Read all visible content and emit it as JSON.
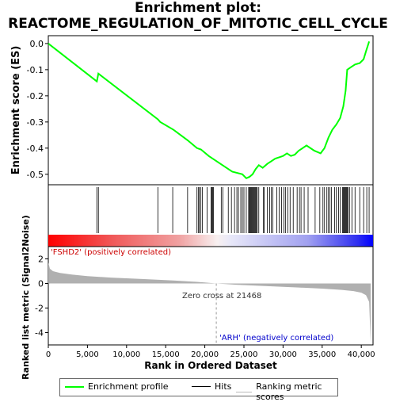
{
  "title": {
    "line1": "Enrichment plot:",
    "line2": "REACTOME_REGULATION_OF_MITOTIC_CELL_CYCLE"
  },
  "colors": {
    "es_line": "#00ff00",
    "hit": "#000000",
    "metric_fill": "#b0b0b0",
    "pos_end": "#ff0000",
    "neg_end": "#0000ff",
    "zero_line": "#999999"
  },
  "chart_data": [
    {
      "type": "line",
      "name": "enrichment-score",
      "ylabel": "Enrichment score (ES)",
      "xlim": [
        0,
        41500
      ],
      "ylim": [
        -0.54,
        0.03
      ],
      "yticks": [
        0.0,
        -0.1,
        -0.2,
        -0.3,
        -0.4,
        -0.5
      ],
      "ytick_labels": [
        "0.0",
        "-0.1",
        "-0.2",
        "-0.3",
        "-0.4",
        "-0.5"
      ],
      "grid": false,
      "points": [
        [
          0,
          0.0
        ],
        [
          6200,
          -0.145
        ],
        [
          6400,
          -0.115
        ],
        [
          14000,
          -0.29
        ],
        [
          14300,
          -0.3
        ],
        [
          16000,
          -0.33
        ],
        [
          17800,
          -0.37
        ],
        [
          19000,
          -0.4
        ],
        [
          19500,
          -0.405
        ],
        [
          20500,
          -0.43
        ],
        [
          22000,
          -0.46
        ],
        [
          23500,
          -0.49
        ],
        [
          24800,
          -0.5
        ],
        [
          25300,
          -0.515
        ],
        [
          25700,
          -0.51
        ],
        [
          26100,
          -0.5
        ],
        [
          26500,
          -0.48
        ],
        [
          26900,
          -0.465
        ],
        [
          27400,
          -0.475
        ],
        [
          28000,
          -0.46
        ],
        [
          28500,
          -0.45
        ],
        [
          29000,
          -0.44
        ],
        [
          29500,
          -0.435
        ],
        [
          30000,
          -0.43
        ],
        [
          30500,
          -0.42
        ],
        [
          31000,
          -0.43
        ],
        [
          31500,
          -0.425
        ],
        [
          32000,
          -0.41
        ],
        [
          32500,
          -0.4
        ],
        [
          33000,
          -0.39
        ],
        [
          34000,
          -0.41
        ],
        [
          34800,
          -0.42
        ],
        [
          35300,
          -0.4
        ],
        [
          35800,
          -0.36
        ],
        [
          36300,
          -0.33
        ],
        [
          36800,
          -0.31
        ],
        [
          37300,
          -0.285
        ],
        [
          37700,
          -0.24
        ],
        [
          38000,
          -0.18
        ],
        [
          38200,
          -0.1
        ],
        [
          38700,
          -0.09
        ],
        [
          39200,
          -0.08
        ],
        [
          39800,
          -0.075
        ],
        [
          40300,
          -0.06
        ],
        [
          40600,
          -0.03
        ],
        [
          41000,
          0.008
        ]
      ]
    },
    {
      "type": "hits",
      "name": "hits",
      "positions": [
        6200,
        6400,
        14000,
        15900,
        17800,
        19000,
        19200,
        19300,
        19500,
        19700,
        20300,
        20800,
        20900,
        21000,
        21100,
        22100,
        22300,
        23000,
        23400,
        23800,
        24100,
        24300,
        24600,
        24800,
        25000,
        25300,
        25600,
        25700,
        25800,
        25900,
        26000,
        26100,
        26200,
        26300,
        26400,
        26500,
        26600,
        26700,
        26900,
        27500,
        27600,
        28000,
        28300,
        28500,
        28700,
        29200,
        29500,
        29800,
        30100,
        30300,
        30600,
        30900,
        31300,
        31800,
        32100,
        32300,
        32700,
        33200,
        34100,
        34700,
        35100,
        35300,
        35600,
        35800,
        36000,
        36200,
        36600,
        36800,
        37100,
        37300,
        37600,
        37700,
        37800,
        37900,
        38000,
        38100,
        38200,
        38300,
        38500,
        38800,
        39200,
        39800,
        40300,
        40700,
        41000
      ]
    },
    {
      "type": "area",
      "name": "ranked-metric",
      "xlabel": "Rank in Ordered Dataset",
      "ylabel": "Ranked list metric (Signal2Noise)",
      "xlim": [
        0,
        41500
      ],
      "ylim": [
        -5,
        3
      ],
      "yticks": [
        2,
        0,
        -2,
        -4
      ],
      "ytick_labels": [
        "2",
        "0",
        "-2",
        "-4"
      ],
      "xticks": [
        0,
        5000,
        10000,
        15000,
        20000,
        25000,
        30000,
        35000,
        40000
      ],
      "xtick_labels": [
        "0",
        "5,000",
        "10,000",
        "15,000",
        "20,000",
        "25,000",
        "30,000",
        "35,000",
        "40,000"
      ],
      "points": [
        [
          0,
          1.7
        ],
        [
          200,
          1.2
        ],
        [
          600,
          1.0
        ],
        [
          1500,
          0.85
        ],
        [
          3000,
          0.72
        ],
        [
          5000,
          0.6
        ],
        [
          8000,
          0.48
        ],
        [
          12000,
          0.36
        ],
        [
          16000,
          0.24
        ],
        [
          19000,
          0.13
        ],
        [
          21468,
          0.0
        ],
        [
          24000,
          -0.1
        ],
        [
          28000,
          -0.22
        ],
        [
          32000,
          -0.33
        ],
        [
          35000,
          -0.42
        ],
        [
          37500,
          -0.52
        ],
        [
          39000,
          -0.62
        ],
        [
          40000,
          -0.75
        ],
        [
          40600,
          -0.95
        ],
        [
          41000,
          -1.5
        ],
        [
          41200,
          -4.8
        ]
      ],
      "zero_cross": 21468,
      "annotations": {
        "zero_cross": "Zero cross at 21468",
        "positive": "'FSHD2' (positively correlated)",
        "negative": "'ARH' (negatively correlated)"
      }
    }
  ],
  "legend": {
    "profile": "Enrichment profile",
    "hits": "Hits",
    "metric": "Ranking metric scores"
  }
}
